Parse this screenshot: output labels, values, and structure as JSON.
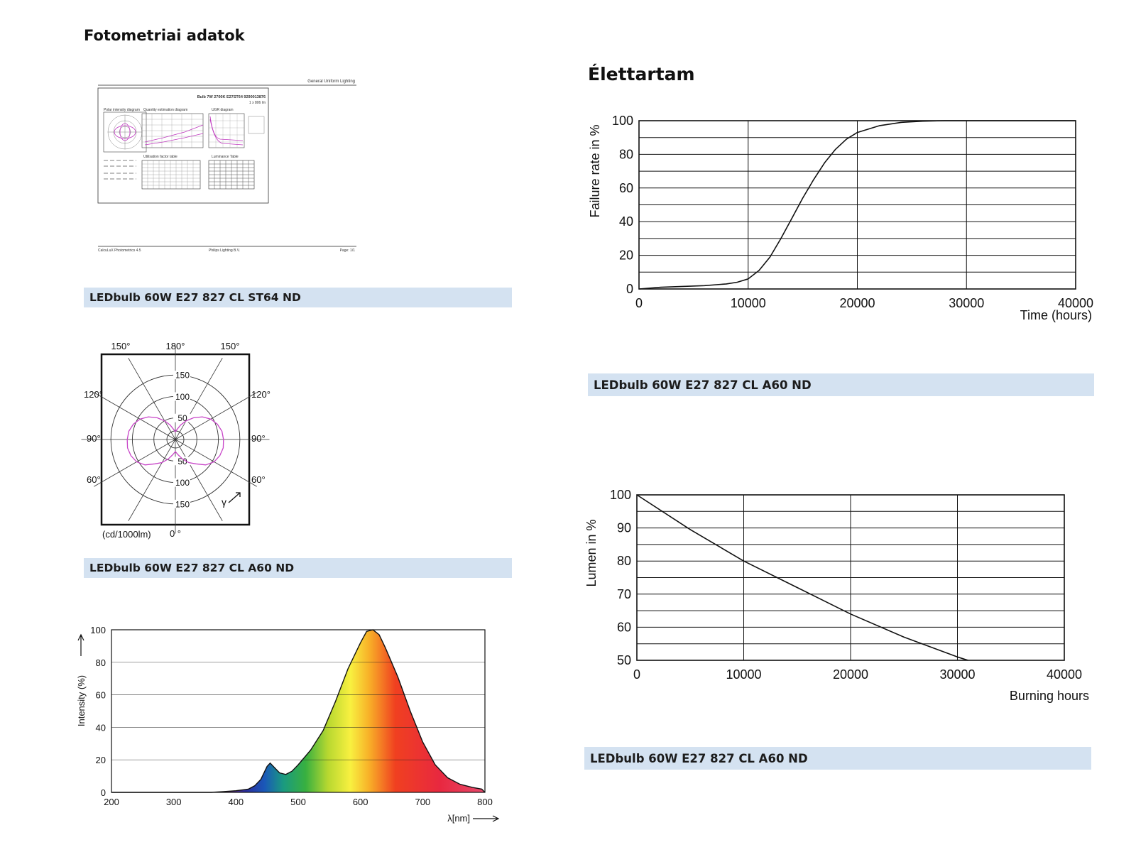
{
  "sections": {
    "photometric_title": "Fotometriai adatok",
    "lifetime_title": "Élettartam"
  },
  "captions": {
    "photometric_sheet": "LEDbulb 60W E27 827 CL ST64 ND",
    "polar": "LEDbulb 60W E27 827 CL A60 ND",
    "failure": "LEDbulb 60W E27 827 CL A60 ND",
    "lumen": "LEDbulb 60W E27 827 CL A60 ND"
  },
  "sheet": {
    "header_right": "General Uniform Lighting",
    "product_line": "Bulb 7W 2700K E27ST64 9290013876",
    "lamp_line": "1 x 806 lm",
    "panels": [
      "Polar intensity diagram",
      "Quantity estimation diagram",
      "UGR diagram",
      "Utilisation factor table",
      "Luminance Table"
    ],
    "footer_left": "CalcuLuX Photometrics 4.5",
    "footer_mid": "Philips Lighting B.V.",
    "footer_right": "Page: 1/1"
  },
  "chart_data": [
    {
      "type": "polar",
      "angle_labels_top": [
        "150°",
        "180°",
        "150°"
      ],
      "angle_labels_left": [
        "120°",
        "90°",
        "60°"
      ],
      "angle_labels_right": [
        "120°",
        "90°",
        "60°"
      ],
      "angle_label_bottom": "0 °",
      "radial_ticks": [
        150,
        100,
        50
      ],
      "radial_max": 175,
      "unit_label": "(cd/1000lm)",
      "gamma_label": "γ",
      "series": [
        {
          "angles_deg": [
            0,
            10,
            20,
            30,
            40,
            50,
            60,
            70,
            80,
            90,
            100,
            110,
            120,
            130,
            140,
            150,
            160,
            170,
            180
          ],
          "values": [
            28,
            36,
            48,
            62,
            74,
            92,
            104,
            110,
            113,
            112,
            110,
            104,
            95,
            82,
            66,
            50,
            36,
            24,
            18
          ]
        }
      ]
    },
    {
      "type": "area",
      "xlabel": "λ[nm]",
      "ylabel": "Intensity (%)",
      "xlim": [
        200,
        800
      ],
      "ylim": [
        0,
        100
      ],
      "xticks": [
        200,
        300,
        400,
        500,
        600,
        700,
        800
      ],
      "yticks": [
        0,
        20,
        40,
        60,
        80,
        100
      ],
      "x": [
        200,
        360,
        380,
        400,
        420,
        430,
        440,
        450,
        455,
        460,
        470,
        480,
        490,
        500,
        520,
        540,
        560,
        580,
        600,
        610,
        620,
        630,
        640,
        660,
        680,
        700,
        720,
        740,
        760,
        780,
        795,
        800
      ],
      "y": [
        0,
        0,
        0.5,
        1,
        2,
        4,
        8,
        16,
        18,
        16,
        12,
        11,
        13,
        17,
        26,
        38,
        56,
        76,
        92,
        99,
        100,
        97,
        89,
        71,
        50,
        31,
        17,
        9,
        5,
        3,
        2,
        0
      ]
    },
    {
      "type": "line",
      "xlabel": "Time (hours)",
      "ylabel": "Failure rate in %",
      "xlim": [
        0,
        40000
      ],
      "ylim": [
        0,
        100
      ],
      "xticks": [
        0,
        10000,
        20000,
        30000,
        40000
      ],
      "yticks": [
        0,
        20,
        40,
        60,
        80,
        100
      ],
      "x": [
        0,
        2000,
        4000,
        6000,
        8000,
        9000,
        10000,
        11000,
        12000,
        13000,
        14000,
        15000,
        16000,
        17000,
        18000,
        19000,
        20000,
        22000,
        24000,
        26000,
        28000,
        30000,
        40000
      ],
      "y": [
        0,
        1,
        1.5,
        2,
        3,
        4,
        6,
        11,
        19,
        30,
        42,
        54,
        65,
        75,
        83,
        89,
        93,
        97,
        99,
        99.7,
        100,
        100,
        100
      ]
    },
    {
      "type": "line",
      "xlabel": "Burning hours",
      "ylabel": "Lumen in %",
      "xlim": [
        0,
        40000
      ],
      "ylim": [
        50,
        100
      ],
      "xticks": [
        0,
        10000,
        20000,
        30000,
        40000
      ],
      "yticks": [
        50,
        60,
        70,
        80,
        90,
        100
      ],
      "x": [
        0,
        5000,
        10000,
        15000,
        20000,
        25000,
        30000,
        31000
      ],
      "y": [
        100,
        89.5,
        80,
        72,
        64,
        57,
        51,
        50
      ]
    }
  ]
}
